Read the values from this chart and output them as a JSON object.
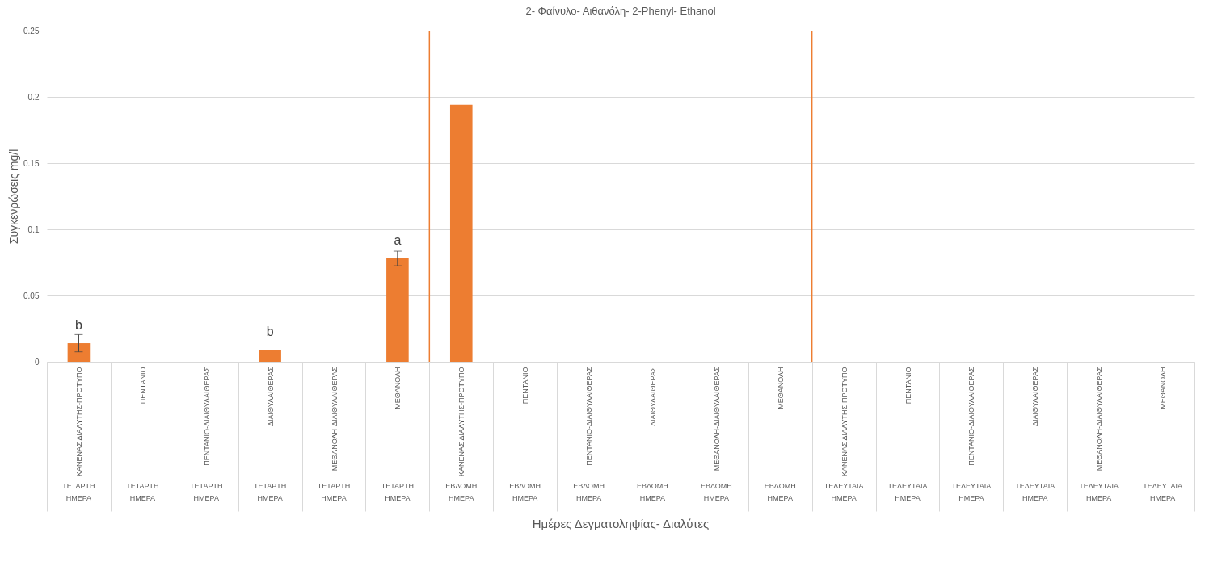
{
  "chart_data": {
    "type": "bar",
    "title": "2- Φαίνυλο- Αιθανόλη- 2-Phenyl- Ethanol",
    "ylabel": "Συγκενρώσεις mg/l",
    "categories": [
      "ΚΑΝΕΝΑΣ ΔΙΑΛΥΤΗΣ-ΠΡΟΤΥΠΟ\nΤΕΤΑΡΤΗ ΗΜΕΡΑ",
      "ΠΕΝΤΑΝΙΟ\nΤΕΤΑΡΤΗ ΗΜΕΡΑ",
      "ΠΕΝΤΑΝΙΟ-ΔΙΑΙΘΥΛΑΙΘΕΡΑΣ\nΤΕΤΑΡΤΗ ΗΜΕΡΑ",
      "ΔΙΑΙΘΥΛΑΙΘΕΡΑΣ\nΤΕΤΑΡΤΗ ΗΜΕΡΑ",
      "ΜΕΘΑΝΟΛΗ-ΔΙΑΙΘΥΛΑΙΘΕΡΑΣ\nΤΕΤΑΡΤΗ ΗΜΕΡΑ",
      "ΜΕΘΑΝΟΛΗ\nΤΕΤΑΡΤΗ ΗΜΕΡΑ",
      "ΚΑΝΕΝΑΣ ΔΙΑΛΥΤΗΣ-ΠΡΟΤΥΠΟ\nΕΒΔΟΜΗ ΗΜΕΡΑ",
      "ΠΕΝΤΑΝΙΟ\nΕΒΔΟΜΗ ΗΜΕΡΑ",
      "ΠΕΝΤΑΝΙΟ-ΔΙΑΙΘΥΛΑΙΘΕΡΑΣ\nΕΒΔΟΜΗ ΗΜΕΡΑ",
      "ΔΙΑΙΘΥΛΑΙΘΕΡΑΣ\nΕΒΔΟΜΗ ΗΜΕΡΑ",
      "ΜΕΘΑΝΟΛΗ-ΔΙΑΙΘΥΛΑΙΘΕΡΑΣ\nΕΒΔΟΜΗ ΗΜΕΡΑ",
      "ΜΕΘΑΝΟΛΗ\nΕΒΔΟΜΗ ΗΜΕΡΑ",
      "ΚΑΝΕΝΑΣ ΔΙΑΛΥΤΗΣ-ΠΡΟΤΥΠΟ\nΤΕΛΕΥΤΑΙΑ ΗΜΕΡΑ",
      "ΠΕΝΤΑΝΙΟ\nΤΕΛΕΥΤΑΙΑ ΗΜΕΡΑ",
      "ΠΕΝΤΑΝΙΟ-ΔΙΑΙΘΥΛΑΙΘΕΡΑΣ\nΤΕΛΕΥΤΑΙΑ ΗΜΕΡΑ",
      "ΔΙΑΙΘΥΛΑΙΘΕΡΑΣ\nΤΕΛΕΥΤΑΙΑ ΗΜΕΡΑ",
      "ΜΕΘΑΝΟΛΗ-ΔΙΑΙΘΥΛΑΙΘΕΡΑΣ\nΤΕΛΕΥΤΑΙΑ ΗΜΕΡΑ",
      "ΜΕΘΑΝΟΛΗ\nΤΕΛΕΥΤΑΙΑ ΗΜΕΡΑ"
    ],
    "series": [
      {
        "color": "#ed7d31",
        "values": [
          0.014,
          null,
          null,
          0.009,
          null,
          0.078,
          0.194,
          null,
          null,
          null,
          null,
          null,
          null,
          null,
          null,
          null,
          null,
          null
        ],
        "errors": [
          0.0065,
          null,
          null,
          null,
          null,
          0.0055,
          null,
          null,
          null,
          null,
          null,
          null,
          null,
          null,
          null,
          null,
          null,
          null
        ]
      }
    ],
    "ylim": [
      0,
      0.25
    ],
    "yticks": [
      0,
      0.05,
      0.1,
      0.15,
      0.2,
      0.25
    ],
    "grid": "y",
    "annotations": [
      "Ημέρες Δεγματοληψίας- Διαλύτες",
      {
        "text": "b",
        "x": "ΚΑΝΕΝΑΣ ΔΙΑΛΥΤΗΣ-ΠΡΟΤΥΠΟ\nΤΕΤΑΡΤΗ ΗΜΕΡΑ",
        "y": 0.014
      },
      {
        "text": "b",
        "x": "ΔΙΑΙΘΥΛΑΙΘΕΡΑΣ\nΤΕΤΑΡΤΗ ΗΜΕΡΑ",
        "y": 0.009
      },
      {
        "text": "a",
        "x": "ΜΕΘΑΝΟΛΗ\nΤΕΤΑΡΤΗ ΗΜΕΡΑ",
        "y": 0.078
      }
    ]
  }
}
